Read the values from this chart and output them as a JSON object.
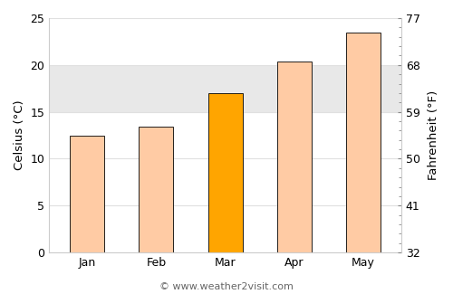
{
  "categories": [
    "Jan",
    "Feb",
    "Mar",
    "Apr",
    "May"
  ],
  "values": [
    12.5,
    13.4,
    17.0,
    20.4,
    23.5
  ],
  "bar_colors": [
    "#FFCBA4",
    "#FFCBA4",
    "#FFA500",
    "#FFCBA4",
    "#FFCBA4"
  ],
  "bar_edgecolor": "#000000",
  "bar_edgewidth": 0.6,
  "highlight_index": 2,
  "ylabel_left": "Celsius (°C)",
  "ylabel_right": "Fahrenheit (°F)",
  "ylim_celsius": [
    0,
    25
  ],
  "yticks_celsius": [
    0,
    5,
    10,
    15,
    20,
    25
  ],
  "yticks_fahrenheit": [
    32,
    41,
    50,
    59,
    68,
    77
  ],
  "background_color": "#ffffff",
  "plot_bg_color": "#ffffff",
  "copyright_text": "© www.weather2visit.com",
  "copyright_fontsize": 8,
  "axis_label_fontsize": 9.5,
  "tick_fontsize": 9,
  "bar_width": 0.5,
  "shaded_band_y1": 15,
  "shaded_band_y2": 20,
  "shaded_band_color": "#e8e8e8",
  "grid_color": "#e0e0e0",
  "xlim": [
    -0.55,
    4.55
  ]
}
